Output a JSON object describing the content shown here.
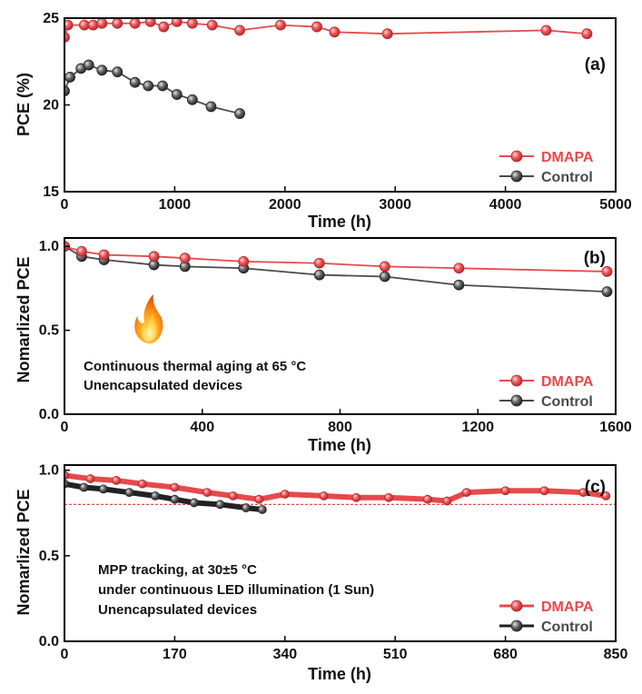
{
  "colors": {
    "dmapa": "#e8494b",
    "control": "#4a4a4a",
    "control_dark": "#222222",
    "reference": "#d23a3a"
  },
  "icons": {
    "thermal": "flame-icon"
  },
  "chart_data": [
    {
      "type": "line",
      "panel": "(a)",
      "xlabel": "Time (h)",
      "ylabel": "PCE (%)",
      "xlim": [
        0,
        5000
      ],
      "ylim": [
        15,
        25
      ],
      "xticks": [
        0,
        1000,
        2000,
        3000,
        4000,
        5000
      ],
      "xtick_labels": [
        "0",
        "1000",
        "2000",
        "3000",
        "4000",
        "5000"
      ],
      "yticks": [
        15,
        20,
        25
      ],
      "ytick_labels": [
        "15",
        "20",
        "25"
      ],
      "legend_position": "bottom-right",
      "series": [
        {
          "name": "DMAPA",
          "color": "#e8494b",
          "x": [
            0,
            30,
            180,
            260,
            340,
            480,
            640,
            780,
            900,
            1020,
            1160,
            1340,
            1590,
            1960,
            2290,
            2450,
            2930,
            4370,
            4740
          ],
          "y": [
            23.9,
            24.6,
            24.6,
            24.6,
            24.7,
            24.7,
            24.7,
            24.8,
            24.5,
            24.8,
            24.7,
            24.6,
            24.3,
            24.6,
            24.5,
            24.2,
            24.1,
            24.3,
            24.1
          ]
        },
        {
          "name": "Control",
          "color": "#4a4a4a",
          "x": [
            0,
            50,
            150,
            220,
            340,
            480,
            640,
            760,
            890,
            1020,
            1160,
            1330,
            1590
          ],
          "y": [
            20.8,
            21.6,
            22.1,
            22.3,
            22.0,
            21.9,
            21.3,
            21.1,
            21.1,
            20.6,
            20.3,
            19.9,
            19.5
          ]
        }
      ]
    },
    {
      "type": "line",
      "panel": "(b)",
      "xlabel": "Time (h)",
      "ylabel": "Nomarlized PCE",
      "xlim": [
        0,
        1600
      ],
      "ylim": [
        0,
        1.05
      ],
      "xticks": [
        0,
        400,
        800,
        1200,
        1600
      ],
      "xtick_labels": [
        "0",
        "400",
        "800",
        "1200",
        "1600"
      ],
      "yticks": [
        0,
        0.5,
        1.0
      ],
      "ytick_labels": [
        "0.0",
        "0.5",
        "1.0"
      ],
      "legend_position": "bottom-right",
      "annotations": [
        "Continuous thermal aging at 65 °C",
        "Unencapsulated devices"
      ],
      "series": [
        {
          "name": "DMAPA",
          "color": "#e8494b",
          "x": [
            0,
            50,
            115,
            260,
            350,
            520,
            740,
            930,
            1145,
            1575
          ],
          "y": [
            1.0,
            0.97,
            0.95,
            0.94,
            0.93,
            0.91,
            0.9,
            0.88,
            0.87,
            0.85
          ]
        },
        {
          "name": "Control",
          "color": "#4a4a4a",
          "x": [
            0,
            50,
            115,
            260,
            350,
            520,
            740,
            930,
            1145,
            1575
          ],
          "y": [
            1.0,
            0.94,
            0.92,
            0.89,
            0.88,
            0.87,
            0.83,
            0.82,
            0.77,
            0.73
          ]
        }
      ]
    },
    {
      "type": "line",
      "panel": "(c)",
      "xlabel": "Time (h)",
      "ylabel": "Nomarlized PCE",
      "xlim": [
        0,
        850
      ],
      "ylim": [
        0,
        1.03
      ],
      "xticks": [
        0,
        170,
        340,
        510,
        680,
        850
      ],
      "xtick_labels": [
        "0",
        "170",
        "340",
        "510",
        "680",
        "850"
      ],
      "yticks": [
        0,
        0.5,
        1.0
      ],
      "ytick_labels": [
        "0.0",
        "0.5",
        "1.0"
      ],
      "reference_line": 0.8,
      "legend_position": "bottom-right",
      "annotations": [
        "MPP tracking, at 30±5 °C",
        "under continuous LED illumination (1 Sun)",
        "Unencapsulated devices"
      ],
      "series": [
        {
          "name": "DMAPA",
          "color": "#e8494b",
          "x": [
            0,
            40,
            80,
            120,
            170,
            220,
            260,
            300,
            340,
            400,
            450,
            500,
            560,
            590,
            620,
            680,
            740,
            800,
            835
          ],
          "y": [
            0.97,
            0.95,
            0.94,
            0.92,
            0.9,
            0.87,
            0.85,
            0.83,
            0.86,
            0.85,
            0.84,
            0.84,
            0.83,
            0.82,
            0.87,
            0.88,
            0.88,
            0.87,
            0.85
          ]
        },
        {
          "name": "Control",
          "color": "#222222",
          "x": [
            0,
            30,
            60,
            100,
            140,
            170,
            200,
            240,
            280,
            305
          ],
          "y": [
            0.92,
            0.9,
            0.89,
            0.87,
            0.85,
            0.83,
            0.81,
            0.8,
            0.78,
            0.77
          ]
        }
      ]
    }
  ]
}
